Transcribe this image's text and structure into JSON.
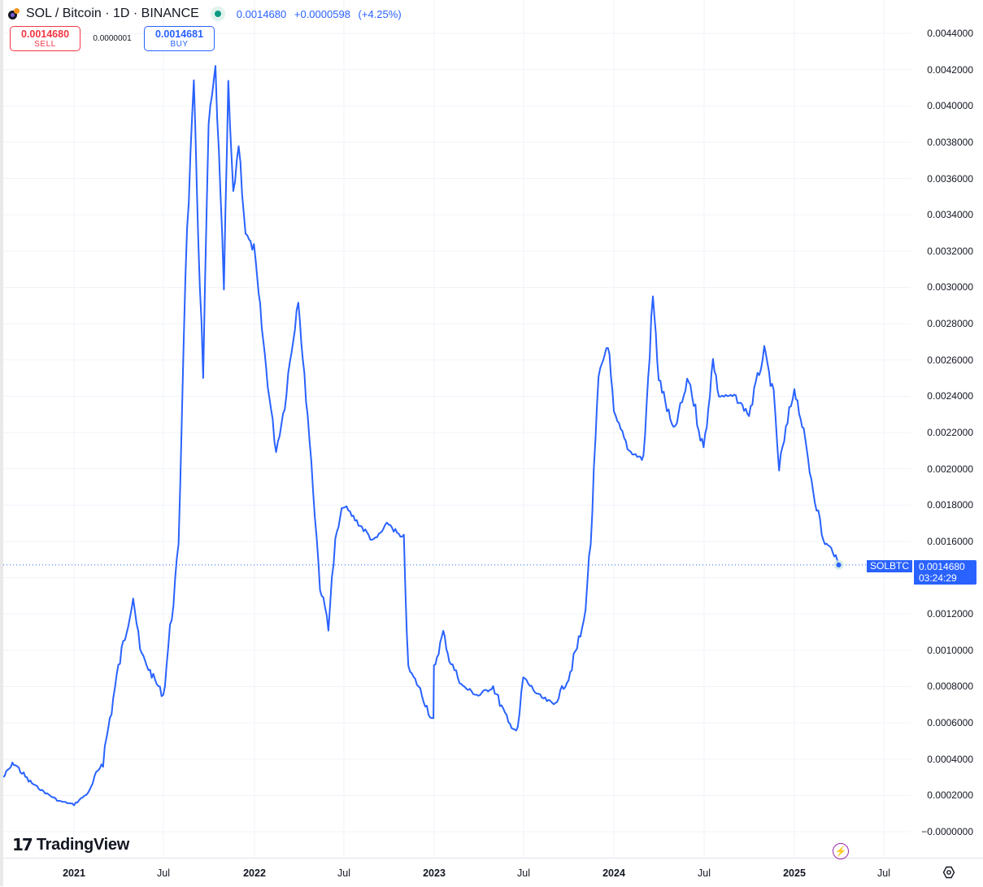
{
  "header": {
    "title": "SOL / Bitcoin · 1D · BINANCE",
    "symbol_icon": "sol-btc-pair-icon",
    "market_status_icon": "market-open-dot-icon",
    "last_price": "0.0014680",
    "change": "+0.0000598",
    "change_pct": "(+4.25%)"
  },
  "trade": {
    "sell_price": "0.0014680",
    "sell_label": "SELL",
    "spread": "0.0000001",
    "buy_price": "0.0014681",
    "buy_label": "BUY"
  },
  "price_tag": {
    "symbol": "SOLBTC",
    "price": "0.0014680",
    "countdown": "03:24:29"
  },
  "branding": {
    "logo_mark": "17",
    "logo_text": "TradingView"
  },
  "icons": {
    "bolt": "⚡",
    "settings": "gear-icon"
  },
  "colors": {
    "line": "#2962ff",
    "sell": "#f23645",
    "buy": "#2962ff",
    "status": "#089981",
    "grid": "#f0f3fa"
  },
  "chart_data": {
    "type": "line",
    "title": "SOL / Bitcoin · 1D · BINANCE",
    "xlabel": "",
    "ylabel": "",
    "grid": true,
    "legend": "none",
    "ylim": [
      0.0,
      0.0044
    ],
    "y_ticks": [
      "0.0044000",
      "0.0042000",
      "0.0040000",
      "0.0038000",
      "0.0036000",
      "0.0034000",
      "0.0032000",
      "0.0030000",
      "0.0028000",
      "0.0026000",
      "0.0024000",
      "0.0022000",
      "0.0020000",
      "0.0018000",
      "0.0016000",
      "0.0014000",
      "0.0012000",
      "0.0010000",
      "0.0008000",
      "0.0006000",
      "0.0004000",
      "0.0002000",
      "−0.0000000"
    ],
    "x_ticks": [
      {
        "label": "2021",
        "year": true
      },
      {
        "label": "Jul",
        "year": false
      },
      {
        "label": "2022",
        "year": true
      },
      {
        "label": "Jul",
        "year": false
      },
      {
        "label": "2023",
        "year": true
      },
      {
        "label": "Jul",
        "year": false
      },
      {
        "label": "2024",
        "year": true
      },
      {
        "label": "Jul",
        "year": false
      },
      {
        "label": "2025",
        "year": true
      },
      {
        "label": "Jul",
        "year": false
      }
    ],
    "series": [
      {
        "name": "SOLBTC",
        "x": [
          "2020-08",
          "2020-09",
          "2020-10",
          "2020-11",
          "2020-12",
          "2021-01",
          "2021-02",
          "2021-03",
          "2021-04",
          "2021-05",
          "2021-05-15",
          "2021-06",
          "2021-07",
          "2021-08",
          "2021-08-15",
          "2021-09",
          "2021-09-10",
          "2021-09-20",
          "2021-10",
          "2021-10-15",
          "2021-11",
          "2021-11-10",
          "2021-11-20",
          "2021-12",
          "2021-12-15",
          "2022-01",
          "2022-01-20",
          "2022-02",
          "2022-02-15",
          "2022-03",
          "2022-04",
          "2022-04-10",
          "2022-04-20",
          "2022-05",
          "2022-05-15",
          "2022-06",
          "2022-06-15",
          "2022-07",
          "2022-08",
          "2022-09",
          "2022-10",
          "2022-11",
          "2022-11-10",
          "2022-12",
          "2022-12-31",
          "2023-01",
          "2023-01-20",
          "2023-02",
          "2023-03",
          "2023-04",
          "2023-05",
          "2023-06",
          "2023-06-20",
          "2023-07",
          "2023-08",
          "2023-09",
          "2023-10",
          "2023-11",
          "2023-11-15",
          "2023-12",
          "2023-12-20",
          "2024-01",
          "2024-02",
          "2024-03",
          "2024-03-20",
          "2024-04",
          "2024-05",
          "2024-06",
          "2024-07",
          "2024-07-20",
          "2024-08",
          "2024-09",
          "2024-10",
          "2024-11",
          "2024-11-20",
          "2024-12",
          "2025-01",
          "2025-01-20",
          "2025-02",
          "2025-03",
          "2025-03-20",
          "2025-04"
        ],
        "values": [
          0.0003,
          0.00038,
          0.00028,
          0.00022,
          0.00017,
          0.00015,
          0.00022,
          0.0004,
          0.0009,
          0.0013,
          0.001,
          0.0009,
          0.00075,
          0.00155,
          0.0031,
          0.0041,
          0.0033,
          0.0025,
          0.0039,
          0.0042,
          0.003,
          0.0041,
          0.0035,
          0.0038,
          0.0033,
          0.0032,
          0.0027,
          0.0024,
          0.0021,
          0.0023,
          0.00295,
          0.0026,
          0.0023,
          0.0019,
          0.00135,
          0.00115,
          0.0016,
          0.0018,
          0.0017,
          0.0016,
          0.0017,
          0.0016,
          0.0009,
          0.0008,
          0.0006,
          0.0009,
          0.0011,
          0.00095,
          0.0008,
          0.00075,
          0.0008,
          0.0006,
          0.00055,
          0.00085,
          0.00075,
          0.0007,
          0.00085,
          0.00115,
          0.0016,
          0.0025,
          0.0027,
          0.0023,
          0.0021,
          0.00205,
          0.00295,
          0.0025,
          0.0022,
          0.0025,
          0.0021,
          0.0026,
          0.0024,
          0.0024,
          0.0023,
          0.00265,
          0.0024,
          0.002,
          0.00245,
          0.0022,
          0.002,
          0.0016,
          0.00155,
          0.00147
        ]
      }
    ]
  }
}
